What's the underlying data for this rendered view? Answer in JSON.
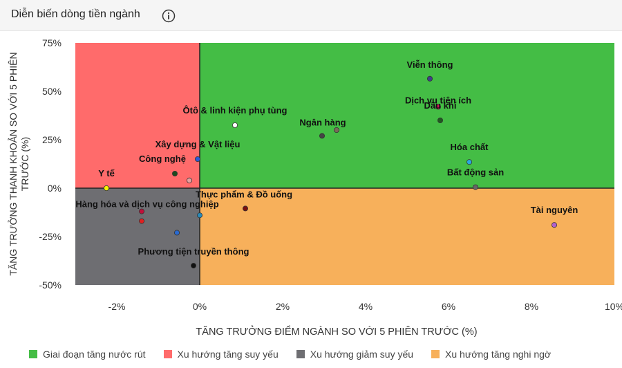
{
  "header": {
    "title": "Diễn biến dòng tiền ngành",
    "info_icon": "info-icon"
  },
  "chart_data": {
    "type": "scatter",
    "xlabel": "TĂNG TRƯỞNG ĐIỂM NGÀNH SO VỚI 5 PHIÊN TRƯỚC (%)",
    "ylabel": "TĂNG TRƯỞNG THANH KHOẢN SO VỚI 5 PHIÊN TRƯỚC (%)",
    "xlim": [
      -3,
      10
    ],
    "ylim": [
      -50,
      75
    ],
    "x_ticks": [
      -2,
      0,
      2,
      4,
      6,
      8,
      10
    ],
    "x_tick_labels": [
      "-2%",
      "0%",
      "2%",
      "4%",
      "6%",
      "8%",
      "10%"
    ],
    "y_ticks": [
      -50,
      -25,
      0,
      25,
      50,
      75
    ],
    "y_tick_labels": [
      "-50%",
      "-25%",
      "0%",
      "25%",
      "50%",
      "75%"
    ],
    "grid": false,
    "legend_position": "bottom",
    "quadrants": [
      {
        "name": "Giai đoạn tăng nước rút",
        "color": "#44bd45"
      },
      {
        "name": "Xu hướng tăng suy yếu",
        "color": "#ff6b6b"
      },
      {
        "name": "Xu hướng giảm suy yếu",
        "color": "#6e6e72"
      },
      {
        "name": "Xu hướng tăng nghi ngờ",
        "color": "#f7b05b"
      }
    ],
    "points": [
      {
        "label": "Viễn thông",
        "x": 5.55,
        "y": 56.5,
        "color": "#3f3f8a"
      },
      {
        "label": "Dịch vụ tiện ích",
        "x": 5.75,
        "y": 42,
        "color": "#d4145a"
      },
      {
        "label": "Dầu khí",
        "x": 5.8,
        "y": 35,
        "color": "#1f5a1f"
      },
      {
        "label": "Ôtô & linh kiện phụ tùng",
        "x": 0.85,
        "y": 32.5,
        "color": "#ffffff"
      },
      {
        "label": "Ngân hàng",
        "x": 2.95,
        "y": 27,
        "color": "#444444"
      },
      {
        "label": "",
        "x": 3.3,
        "y": 30,
        "color": "#7a6a5a"
      },
      {
        "label": "Xây dựng & Vật liệu",
        "x": -0.05,
        "y": 15,
        "color": "#2b59d6"
      },
      {
        "label": "Hóa chất",
        "x": 6.5,
        "y": 13.5,
        "color": "#2aa8e0"
      },
      {
        "label": "Công nghệ",
        "x": -0.6,
        "y": 7.5,
        "color": "#1e4a1e"
      },
      {
        "label": "",
        "x": -0.25,
        "y": 4,
        "color": "#e8a0a0"
      },
      {
        "label": "Y tế",
        "x": -2.25,
        "y": 0,
        "color": "#f5f500"
      },
      {
        "label": "Bất động sản",
        "x": 6.65,
        "y": 0.5,
        "color": "#666666"
      },
      {
        "label": "Thực phẩm & Đồ uống",
        "x": 1.1,
        "y": -10.5,
        "color": "#7a1010"
      },
      {
        "label": "Hàng hóa và dịch vụ công nghiệp",
        "x": -1.4,
        "y": -12,
        "color": "#c0103a"
      },
      {
        "label": "",
        "x": -1.4,
        "y": -17,
        "color": "#e02020"
      },
      {
        "label": "",
        "x": 0.0,
        "y": -14,
        "color": "#2a8ab8"
      },
      {
        "label": "",
        "x": -0.55,
        "y": -23,
        "color": "#2a6ad0"
      },
      {
        "label": "Tài nguyên",
        "x": 8.55,
        "y": -19,
        "color": "#b060d0"
      },
      {
        "label": "Phương tiện truyền thông",
        "x": -0.15,
        "y": -40,
        "color": "#111111"
      }
    ]
  }
}
